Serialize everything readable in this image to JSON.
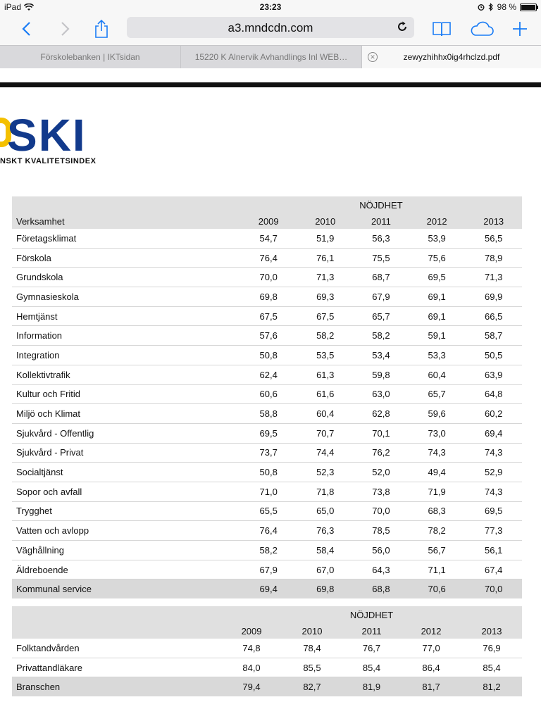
{
  "status": {
    "device": "iPad",
    "time": "23:23",
    "battery": "98 %",
    "battery_level": 0.98
  },
  "toolbar": {
    "url": "a3.mndcdn.com"
  },
  "tabs": [
    {
      "label": "Förskolebanken | IKTsidan"
    },
    {
      "label": "15220 K Alnervik Avhandlings Inl WEB…"
    },
    {
      "label": "zewyzhihhx0ig4rhclzd.pdf"
    }
  ],
  "logo": {
    "text": "SKI",
    "subtitle": "NSKT KVALITETSINDEX",
    "colors": {
      "blue": "#123a8c",
      "yellow": "#f4c000"
    }
  },
  "table1": {
    "group_label": "NÖJDHET",
    "label_header": "Verksamhet",
    "years": [
      "2009",
      "2010",
      "2011",
      "2012",
      "2013"
    ],
    "rows": [
      {
        "name": "Företagsklimat",
        "values": [
          "54,7",
          "51,9",
          "56,3",
          "53,9",
          "56,5"
        ]
      },
      {
        "name": "Förskola",
        "values": [
          "76,4",
          "76,1",
          "75,5",
          "75,6",
          "78,9"
        ]
      },
      {
        "name": "Grundskola",
        "values": [
          "70,0",
          "71,3",
          "68,7",
          "69,5",
          "71,3"
        ]
      },
      {
        "name": "Gymnasieskola",
        "values": [
          "69,8",
          "69,3",
          "67,9",
          "69,1",
          "69,9"
        ]
      },
      {
        "name": "Hemtjänst",
        "values": [
          "67,5",
          "67,5",
          "65,7",
          "69,1",
          "66,5"
        ]
      },
      {
        "name": "Information",
        "values": [
          "57,6",
          "58,2",
          "58,2",
          "59,1",
          "58,7"
        ]
      },
      {
        "name": "Integration",
        "values": [
          "50,8",
          "53,5",
          "53,4",
          "53,3",
          "50,5"
        ]
      },
      {
        "name": "Kollektivtrafik",
        "values": [
          "62,4",
          "61,3",
          "59,8",
          "60,4",
          "63,9"
        ]
      },
      {
        "name": "Kultur och Fritid",
        "values": [
          "60,6",
          "61,6",
          "63,0",
          "65,7",
          "64,8"
        ]
      },
      {
        "name": "Miljö och Klimat",
        "values": [
          "58,8",
          "60,4",
          "62,8",
          "59,6",
          "60,2"
        ]
      },
      {
        "name": "Sjukvård - Offentlig",
        "values": [
          "69,5",
          "70,7",
          "70,1",
          "73,0",
          "69,4"
        ]
      },
      {
        "name": "Sjukvård - Privat",
        "values": [
          "73,7",
          "74,4",
          "76,2",
          "74,3",
          "74,3"
        ]
      },
      {
        "name": "Socialtjänst",
        "values": [
          "50,8",
          "52,3",
          "52,0",
          "49,4",
          "52,9"
        ]
      },
      {
        "name": "Sopor och avfall",
        "values": [
          "71,0",
          "71,8",
          "73,8",
          "71,9",
          "74,3"
        ]
      },
      {
        "name": "Trygghet",
        "values": [
          "65,5",
          "65,0",
          "70,0",
          "68,3",
          "69,5"
        ]
      },
      {
        "name": "Vatten och avlopp",
        "values": [
          "76,4",
          "76,3",
          "78,5",
          "78,2",
          "77,3"
        ]
      },
      {
        "name": "Väghållning",
        "values": [
          "58,2",
          "58,4",
          "56,0",
          "56,7",
          "56,1"
        ]
      },
      {
        "name": "Äldreboende",
        "values": [
          "67,9",
          "67,0",
          "64,3",
          "71,1",
          "67,4"
        ]
      }
    ],
    "total": {
      "name": "Kommunal service",
      "values": [
        "69,4",
        "69,8",
        "68,8",
        "70,6",
        "70,0"
      ]
    }
  },
  "table2": {
    "group_label": "NÖJDHET",
    "label_header": "",
    "years": [
      "2009",
      "2010",
      "2011",
      "2012",
      "2013"
    ],
    "rows": [
      {
        "name": "Folktandvården",
        "values": [
          "74,8",
          "78,4",
          "76,7",
          "77,0",
          "76,9"
        ]
      },
      {
        "name": "Privattandläkare",
        "values": [
          "84,0",
          "85,5",
          "85,4",
          "86,4",
          "85,4"
        ]
      }
    ],
    "total": {
      "name": "Branschen",
      "values": [
        "79,4",
        "82,7",
        "81,9",
        "81,7",
        "81,2"
      ]
    }
  }
}
